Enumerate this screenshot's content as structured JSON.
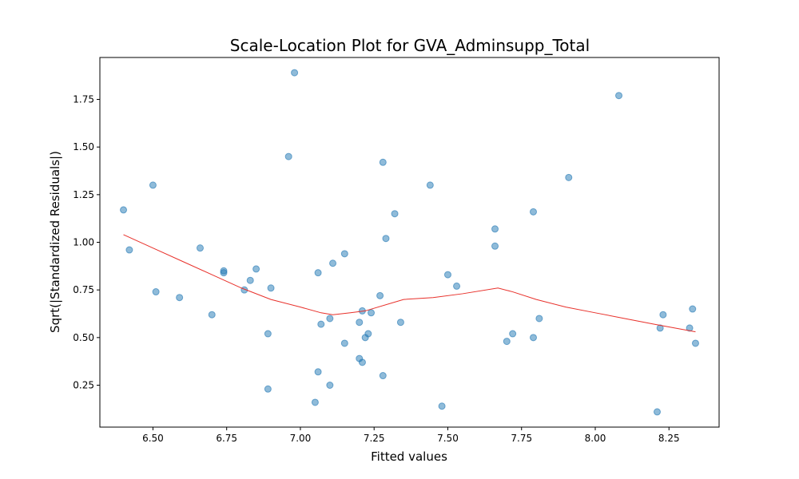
{
  "chart_data": {
    "type": "scatter",
    "title": "Scale-Location Plot for GVA_Adminsupp_Total",
    "xlabel": "Fitted values",
    "ylabel": "Sqrt(|Standardized Residuals|)",
    "xlim": [
      6.32,
      8.42
    ],
    "ylim": [
      0.03,
      1.97
    ],
    "x_ticks": [
      6.5,
      6.75,
      7.0,
      7.25,
      7.5,
      7.75,
      8.0,
      8.25
    ],
    "x_tick_labels": [
      "6.50",
      "6.75",
      "7.00",
      "7.25",
      "7.50",
      "7.75",
      "8.00",
      "8.25"
    ],
    "y_ticks": [
      0.25,
      0.5,
      0.75,
      1.0,
      1.25,
      1.5,
      1.75
    ],
    "y_tick_labels": [
      "0.25",
      "0.50",
      "0.75",
      "1.00",
      "1.25",
      "1.50",
      "1.75"
    ],
    "grid": false,
    "point_color": "#1f77b4",
    "line_color": "#e8302a",
    "points": [
      {
        "x": 6.4,
        "y": 1.17
      },
      {
        "x": 6.42,
        "y": 0.96
      },
      {
        "x": 6.5,
        "y": 1.3
      },
      {
        "x": 6.51,
        "y": 0.74
      },
      {
        "x": 6.59,
        "y": 0.71
      },
      {
        "x": 6.66,
        "y": 0.97
      },
      {
        "x": 6.7,
        "y": 0.62
      },
      {
        "x": 6.74,
        "y": 0.85
      },
      {
        "x": 6.74,
        "y": 0.84
      },
      {
        "x": 6.81,
        "y": 0.75
      },
      {
        "x": 6.83,
        "y": 0.8
      },
      {
        "x": 6.85,
        "y": 0.86
      },
      {
        "x": 6.89,
        "y": 0.52
      },
      {
        "x": 6.89,
        "y": 0.23
      },
      {
        "x": 6.9,
        "y": 0.76
      },
      {
        "x": 6.96,
        "y": 1.45
      },
      {
        "x": 6.98,
        "y": 1.89
      },
      {
        "x": 7.05,
        "y": 0.16
      },
      {
        "x": 7.06,
        "y": 0.32
      },
      {
        "x": 7.06,
        "y": 0.84
      },
      {
        "x": 7.07,
        "y": 0.57
      },
      {
        "x": 7.1,
        "y": 0.6
      },
      {
        "x": 7.1,
        "y": 0.25
      },
      {
        "x": 7.11,
        "y": 0.89
      },
      {
        "x": 7.15,
        "y": 0.94
      },
      {
        "x": 7.15,
        "y": 0.47
      },
      {
        "x": 7.2,
        "y": 0.58
      },
      {
        "x": 7.2,
        "y": 0.39
      },
      {
        "x": 7.21,
        "y": 0.64
      },
      {
        "x": 7.21,
        "y": 0.37
      },
      {
        "x": 7.22,
        "y": 0.5
      },
      {
        "x": 7.23,
        "y": 0.52
      },
      {
        "x": 7.24,
        "y": 0.63
      },
      {
        "x": 7.27,
        "y": 0.72
      },
      {
        "x": 7.28,
        "y": 1.42
      },
      {
        "x": 7.28,
        "y": 0.3
      },
      {
        "x": 7.29,
        "y": 1.02
      },
      {
        "x": 7.32,
        "y": 1.15
      },
      {
        "x": 7.34,
        "y": 0.58
      },
      {
        "x": 7.44,
        "y": 1.3
      },
      {
        "x": 7.48,
        "y": 0.14
      },
      {
        "x": 7.5,
        "y": 0.83
      },
      {
        "x": 7.53,
        "y": 0.77
      },
      {
        "x": 7.66,
        "y": 1.07
      },
      {
        "x": 7.66,
        "y": 0.98
      },
      {
        "x": 7.7,
        "y": 0.48
      },
      {
        "x": 7.72,
        "y": 0.52
      },
      {
        "x": 7.79,
        "y": 1.16
      },
      {
        "x": 7.79,
        "y": 0.5
      },
      {
        "x": 7.81,
        "y": 0.6
      },
      {
        "x": 7.91,
        "y": 1.34
      },
      {
        "x": 8.08,
        "y": 1.77
      },
      {
        "x": 8.21,
        "y": 0.11
      },
      {
        "x": 8.22,
        "y": 0.55
      },
      {
        "x": 8.23,
        "y": 0.62
      },
      {
        "x": 8.32,
        "y": 0.55
      },
      {
        "x": 8.33,
        "y": 0.65
      },
      {
        "x": 8.34,
        "y": 0.47
      }
    ],
    "lowess_line": [
      {
        "x": 6.4,
        "y": 1.04
      },
      {
        "x": 6.5,
        "y": 0.97
      },
      {
        "x": 6.6,
        "y": 0.9
      },
      {
        "x": 6.7,
        "y": 0.83
      },
      {
        "x": 6.8,
        "y": 0.76
      },
      {
        "x": 6.9,
        "y": 0.7
      },
      {
        "x": 7.0,
        "y": 0.66
      },
      {
        "x": 7.07,
        "y": 0.63
      },
      {
        "x": 7.11,
        "y": 0.62
      },
      {
        "x": 7.17,
        "y": 0.63
      },
      {
        "x": 7.22,
        "y": 0.64
      },
      {
        "x": 7.35,
        "y": 0.7
      },
      {
        "x": 7.45,
        "y": 0.71
      },
      {
        "x": 7.55,
        "y": 0.73
      },
      {
        "x": 7.67,
        "y": 0.76
      },
      {
        "x": 7.72,
        "y": 0.74
      },
      {
        "x": 7.8,
        "y": 0.7
      },
      {
        "x": 7.9,
        "y": 0.66
      },
      {
        "x": 8.0,
        "y": 0.63
      },
      {
        "x": 8.1,
        "y": 0.6
      },
      {
        "x": 8.2,
        "y": 0.57
      },
      {
        "x": 8.34,
        "y": 0.53
      }
    ]
  }
}
